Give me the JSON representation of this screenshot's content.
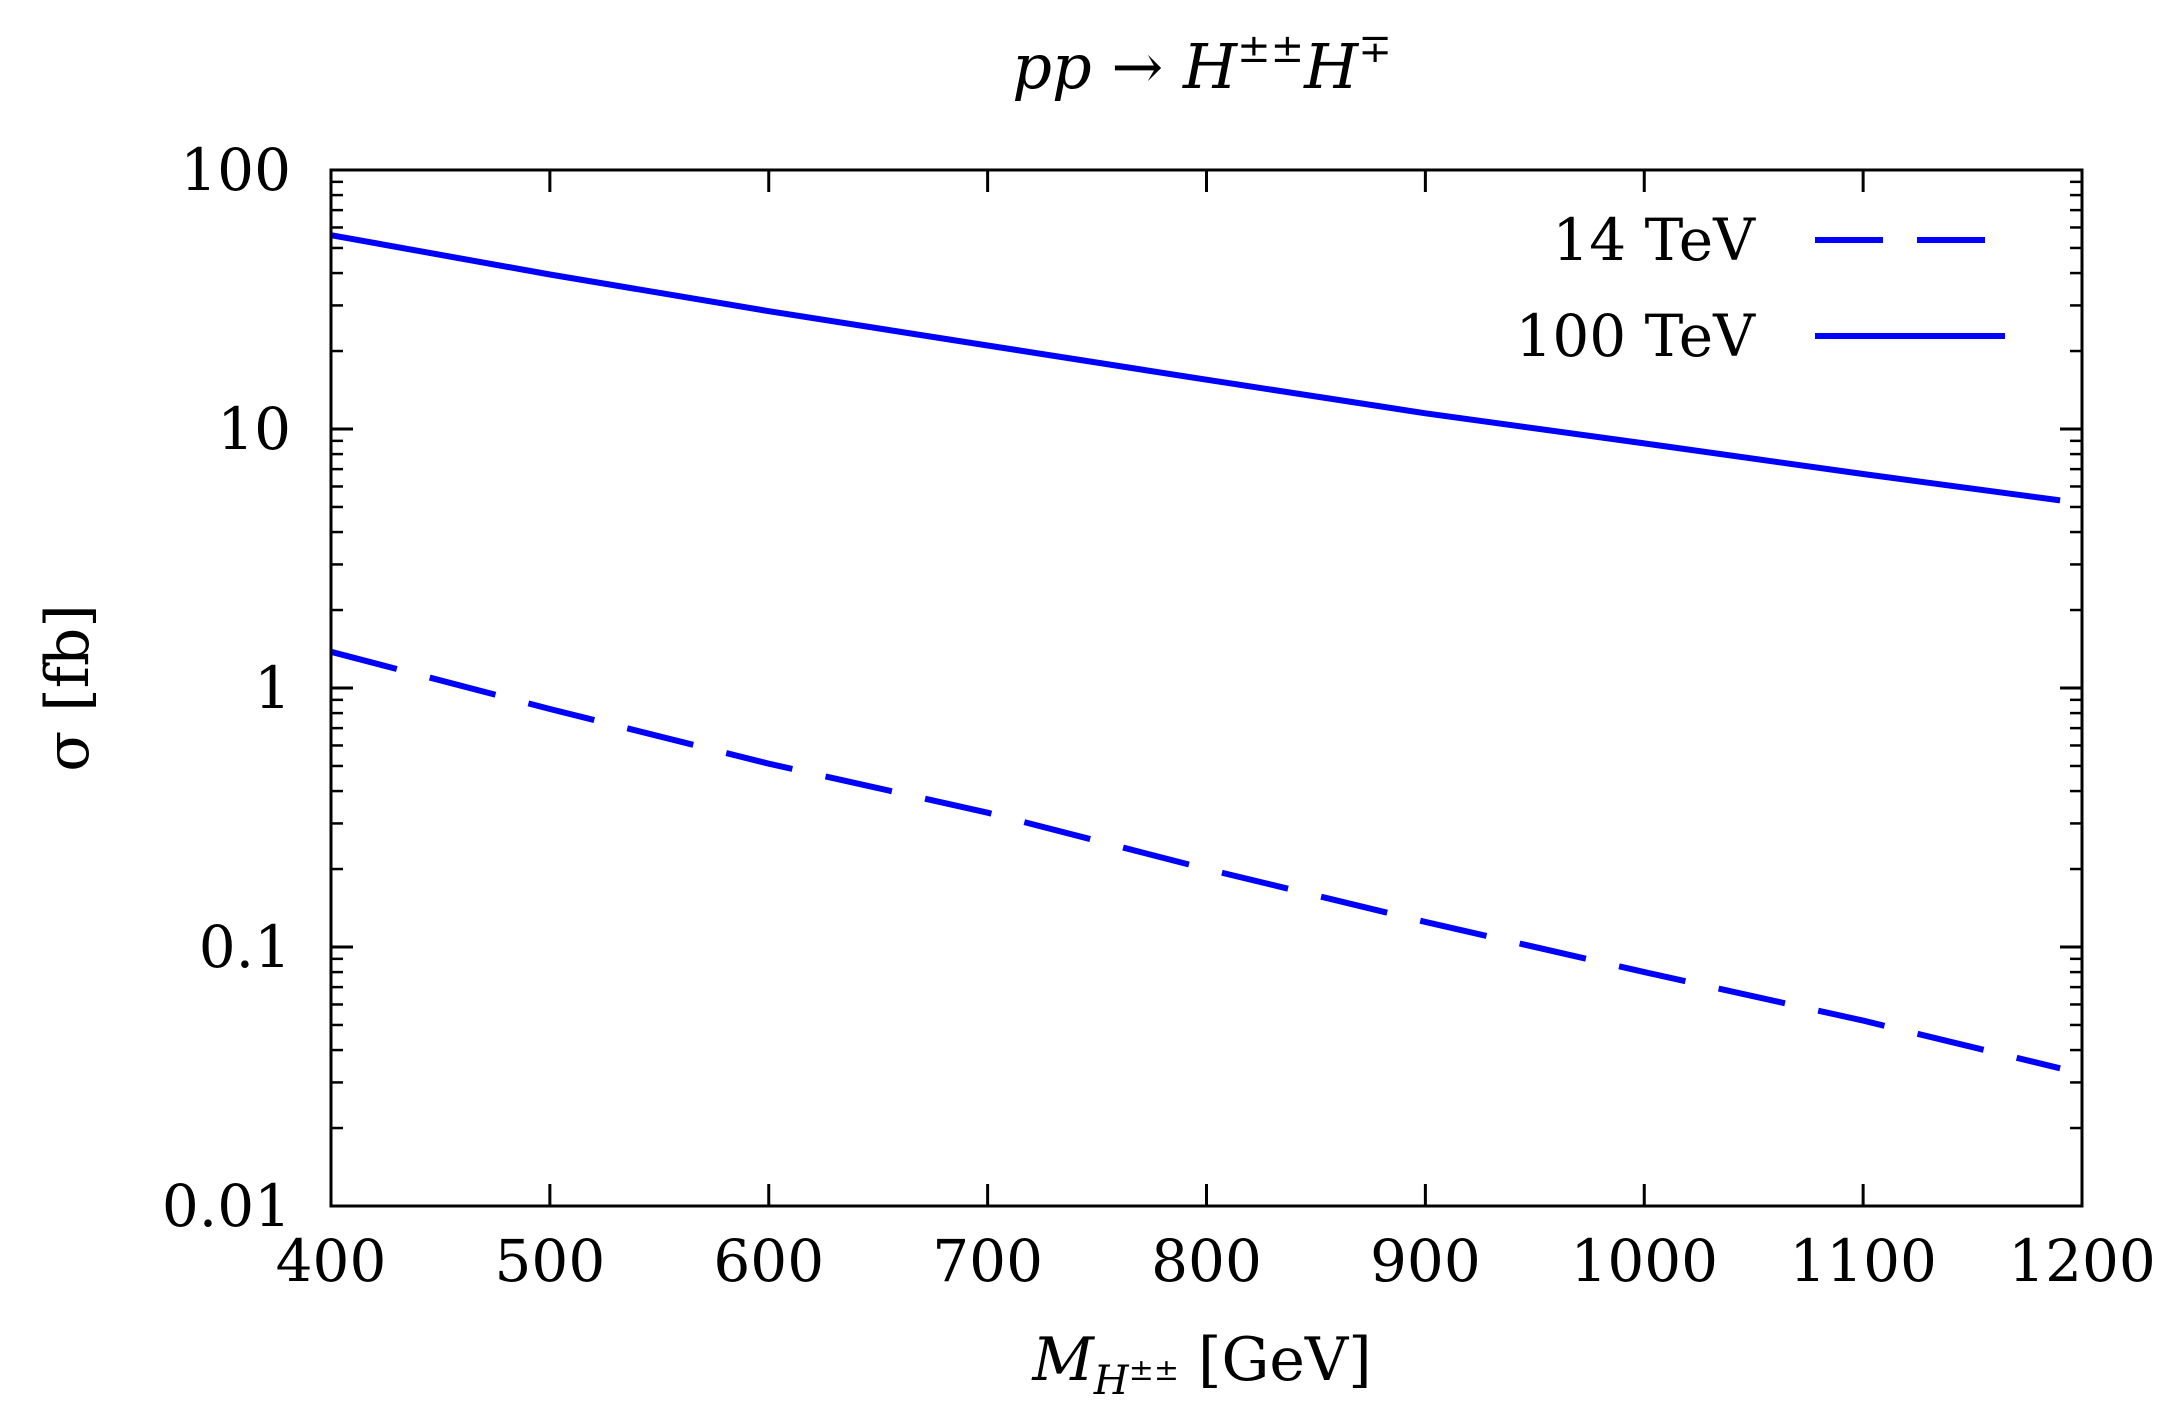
{
  "chart_data": {
    "type": "line",
    "title": "pp → H±±H∓",
    "title_parts": {
      "lhs": "pp",
      "arrow": "→",
      "rhs_base": "H",
      "rhs_sup1": "±±",
      "rhs_base2": "H",
      "rhs_sup2": "∓"
    },
    "xlabel": "M_{H±±} [GeV]",
    "xlabel_parts": {
      "base": "M",
      "sub": "H",
      "subsup": "±±",
      "unit": "[GeV]"
    },
    "ylabel": "σ [fb]",
    "xlim": [
      400,
      1200
    ],
    "ylim": [
      0.01,
      100
    ],
    "yscale": "log",
    "xticks": [
      400,
      500,
      600,
      700,
      800,
      900,
      1000,
      1100,
      1200
    ],
    "xtick_labels": [
      "400",
      "500",
      "600",
      "700",
      "800",
      "900",
      "1000",
      "1100",
      "1200"
    ],
    "yticks": [
      0.01,
      0.1,
      1,
      10,
      100
    ],
    "ytick_labels": [
      "0.01",
      "0.1",
      "1",
      "10",
      "100"
    ],
    "grid": false,
    "legend_position": "top-right",
    "series": [
      {
        "name": "14 TeV",
        "style": "dashed",
        "color": "#0000ff",
        "x": [
          400,
          500,
          600,
          700,
          800,
          900,
          1000,
          1100,
          1190
        ],
        "values": [
          1.38,
          0.83,
          0.51,
          0.33,
          0.2,
          0.125,
          0.08,
          0.052,
          0.034
        ]
      },
      {
        "name": "100 TeV",
        "style": "solid",
        "color": "#0000ff",
        "x": [
          400,
          500,
          600,
          700,
          800,
          900,
          1000,
          1100,
          1190
        ],
        "values": [
          56,
          39.5,
          28.5,
          21,
          15.5,
          11.5,
          8.8,
          6.7,
          5.3
        ]
      }
    ]
  }
}
